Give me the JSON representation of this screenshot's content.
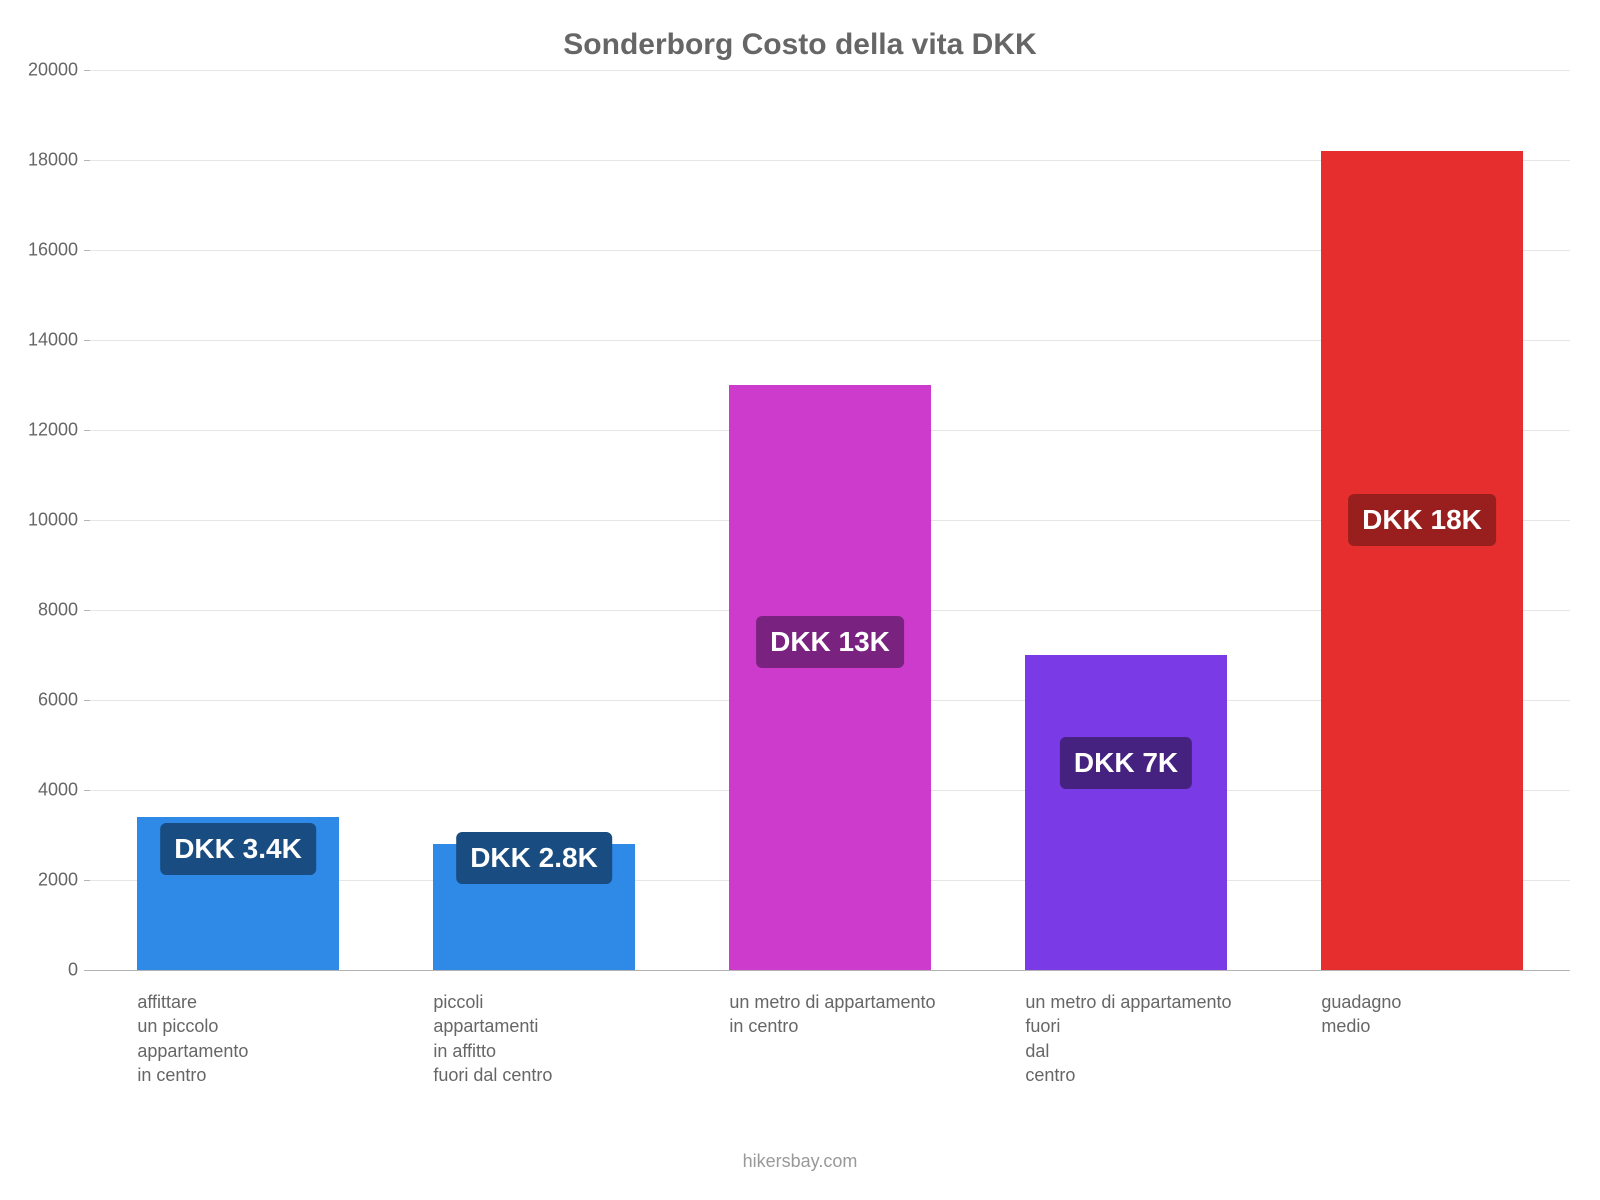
{
  "title": "Sonderborg Costo della vita DKK",
  "footer": "hikersbay.com",
  "chart": {
    "type": "bar",
    "background_color": "#ffffff",
    "title_fontsize": 30,
    "title_color": "#666666",
    "label_fontsize": 18,
    "label_color": "#666666",
    "ylim": [
      0,
      20000
    ],
    "ytick_step": 2000,
    "grid_color": "#e6e6e6",
    "axis_color": "#b3b3b3",
    "bar_width": 0.68,
    "yticks": [
      {
        "v": 0,
        "label": "0"
      },
      {
        "v": 2000,
        "label": "2000"
      },
      {
        "v": 4000,
        "label": "4000"
      },
      {
        "v": 6000,
        "label": "6000"
      },
      {
        "v": 8000,
        "label": "8000"
      },
      {
        "v": 10000,
        "label": "10000"
      },
      {
        "v": 12000,
        "label": "12000"
      },
      {
        "v": 14000,
        "label": "14000"
      },
      {
        "v": 16000,
        "label": "16000"
      },
      {
        "v": 18000,
        "label": "18000"
      },
      {
        "v": 20000,
        "label": "20000"
      }
    ],
    "bars": [
      {
        "key": "rent-small-center",
        "label": "affittare\nun piccolo\nappartamento\nin centro",
        "value": 3400,
        "value_label": "DKK 3.4K",
        "bar_color": "#2e8ae6",
        "badge_bg": "#194c80",
        "badge_fontsize": 28,
        "badge_y": 2700
      },
      {
        "key": "rent-small-outside",
        "label": "piccoli\nappartamenti\nin affitto\nfuori dal centro",
        "value": 2800,
        "value_label": "DKK 2.8K",
        "bar_color": "#2e8ae6",
        "badge_bg": "#194c80",
        "badge_fontsize": 28,
        "badge_y": 2500
      },
      {
        "key": "sqm-center",
        "label": "un metro di appartamento\nin centro",
        "value": 13000,
        "value_label": "DKK 13K",
        "bar_color": "#cc3bcc",
        "badge_bg": "#7a2280",
        "badge_fontsize": 28,
        "badge_y": 7300
      },
      {
        "key": "sqm-outside",
        "label": "un metro di appartamento\nfuori\ndal\ncentro",
        "value": 7000,
        "value_label": "DKK 7K",
        "bar_color": "#7a3be6",
        "badge_bg": "#452280",
        "badge_fontsize": 28,
        "badge_y": 4600
      },
      {
        "key": "avg-salary",
        "label": "guadagno\nmedio",
        "value": 18200,
        "value_label": "DKK 18K",
        "bar_color": "#e62e2e",
        "badge_bg": "#991f1f",
        "badge_fontsize": 28,
        "badge_y": 10000
      }
    ]
  }
}
